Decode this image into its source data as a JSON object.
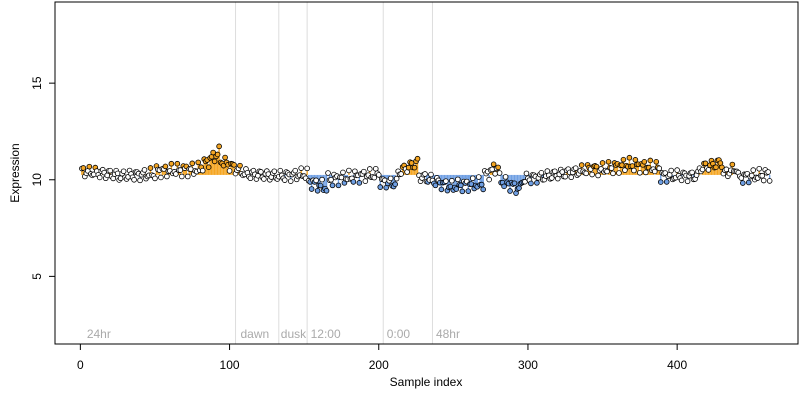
{
  "chart_data": {
    "type": "scatter",
    "title": "",
    "xlabel": "Sample index",
    "ylabel": "Expression",
    "xlim": [
      -17,
      481
    ],
    "ylim": [
      1.5,
      19.2
    ],
    "xticks": [
      0,
      100,
      200,
      300,
      400
    ],
    "yticks": [
      5,
      10,
      15
    ],
    "baseline": 10.25,
    "colors": {
      "above": "#f5a623",
      "below": "#6f9fe3",
      "neutral": "#ffffff",
      "outline": "#000000",
      "vline": "#dddddd",
      "annotation": "#aaaaaa"
    },
    "vlines": [
      104,
      133,
      152,
      203,
      236
    ],
    "annotations": [
      {
        "x": 3,
        "label": "24hr"
      },
      {
        "x": 106,
        "label": "dawn"
      },
      {
        "x": 133,
        "label": "dusk"
      },
      {
        "x": 153,
        "label": "12:00"
      },
      {
        "x": 204,
        "label": "0:00"
      },
      {
        "x": 237,
        "label": "48hr"
      }
    ],
    "segments": [
      {
        "x": [
          1,
          25
        ],
        "y": [
          10.45,
          10.25
        ]
      },
      {
        "x": [
          26,
          50
        ],
        "y": [
          10.2,
          10.3
        ]
      },
      {
        "x": [
          51,
          80
        ],
        "y": [
          10.45,
          10.55
        ]
      },
      {
        "x": [
          81,
          93
        ],
        "y": [
          10.7,
          11.4
        ]
      },
      {
        "x": [
          94,
          110
        ],
        "y": [
          11.0,
          10.35
        ]
      },
      {
        "x": [
          111,
          135
        ],
        "y": [
          10.3,
          10.2
        ]
      },
      {
        "x": [
          136,
          152
        ],
        "y": [
          10.2,
          10.3
        ]
      },
      {
        "x": [
          153,
          165
        ],
        "y": [
          9.9,
          9.6
        ]
      },
      {
        "x": [
          166,
          200
        ],
        "y": [
          10.0,
          10.3
        ]
      },
      {
        "x": [
          201,
          212
        ],
        "y": [
          9.9,
          9.8
        ]
      },
      {
        "x": [
          213,
          226
        ],
        "y": [
          10.4,
          10.9
        ]
      },
      {
        "x": [
          227,
          250
        ],
        "y": [
          10.2,
          9.6
        ]
      },
      {
        "x": [
          251,
          270
        ],
        "y": [
          9.7,
          9.8
        ]
      },
      {
        "x": [
          271,
          280
        ],
        "y": [
          10.2,
          10.7
        ]
      },
      {
        "x": [
          281,
          295
        ],
        "y": [
          10.0,
          9.5
        ]
      },
      {
        "x": [
          296,
          330
        ],
        "y": [
          10.0,
          10.4
        ]
      },
      {
        "x": [
          331,
          345
        ],
        "y": [
          10.4,
          10.6
        ]
      },
      {
        "x": [
          346,
          365
        ],
        "y": [
          10.5,
          10.75
        ]
      },
      {
        "x": [
          366,
          388
        ],
        "y": [
          10.8,
          10.6
        ]
      },
      {
        "x": [
          389,
          414
        ],
        "y": [
          10.2,
          10.2
        ]
      },
      {
        "x": [
          415,
          430
        ],
        "y": [
          10.6,
          10.9
        ]
      },
      {
        "x": [
          431,
          440
        ],
        "y": [
          10.3,
          10.6
        ]
      },
      {
        "x": [
          441,
          462
        ],
        "y": [
          10.1,
          10.3
        ]
      }
    ]
  }
}
